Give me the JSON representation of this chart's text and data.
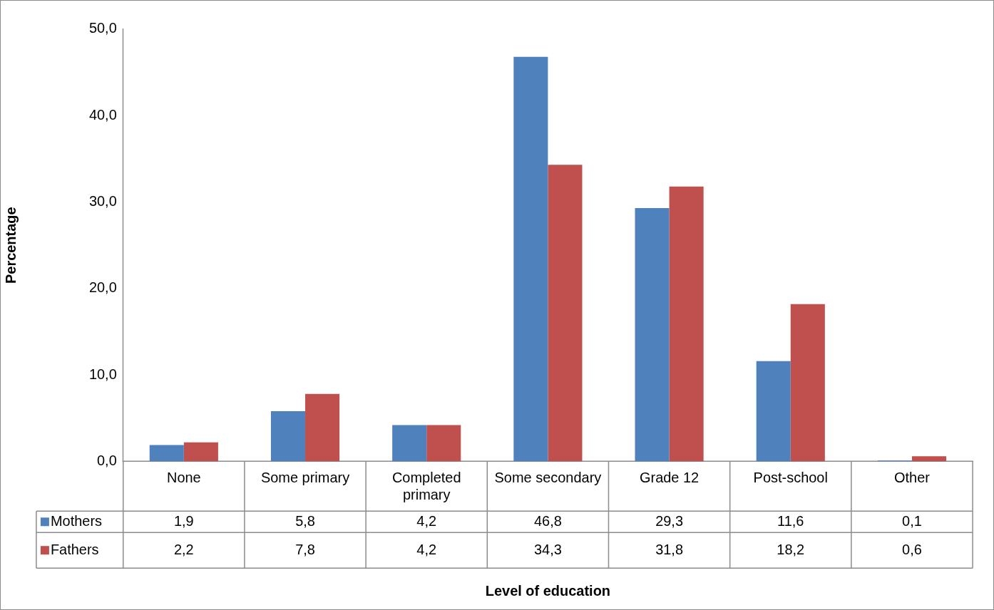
{
  "chart_data": {
    "type": "bar",
    "annotations": [
      "Level of education"
    ],
    "ylabel": "Percentage",
    "categories": [
      "None",
      "Some primary",
      "Completed primary",
      "Some secondary",
      "Grade 12",
      "Post-school",
      "Other"
    ],
    "series": [
      {
        "name": "Mothers",
        "color": "#4f81bd",
        "values": [
          1.9,
          5.8,
          4.2,
          46.8,
          29.3,
          11.6,
          0.1
        ],
        "value_labels": [
          "1,9",
          "5,8",
          "4,2",
          "46,8",
          "29,3",
          "11,6",
          "0,1"
        ]
      },
      {
        "name": "Fathers",
        "color": "#c0504d",
        "values": [
          2.2,
          7.8,
          4.2,
          34.3,
          31.8,
          18.2,
          0.6
        ],
        "value_labels": [
          "2,2",
          "7,8",
          "4,2",
          "34,3",
          "31,8",
          "18,2",
          "0,6"
        ]
      }
    ],
    "ylim": [
      0,
      50
    ],
    "yticks": [
      {
        "value": 0,
        "label": "0,0"
      },
      {
        "value": 10,
        "label": "10,0"
      },
      {
        "value": 20,
        "label": "20,0"
      },
      {
        "value": 30,
        "label": "30,0"
      },
      {
        "value": 40,
        "label": "40,0"
      },
      {
        "value": 50,
        "label": "50,0"
      }
    ],
    "legend": "bottom",
    "grid": false
  }
}
